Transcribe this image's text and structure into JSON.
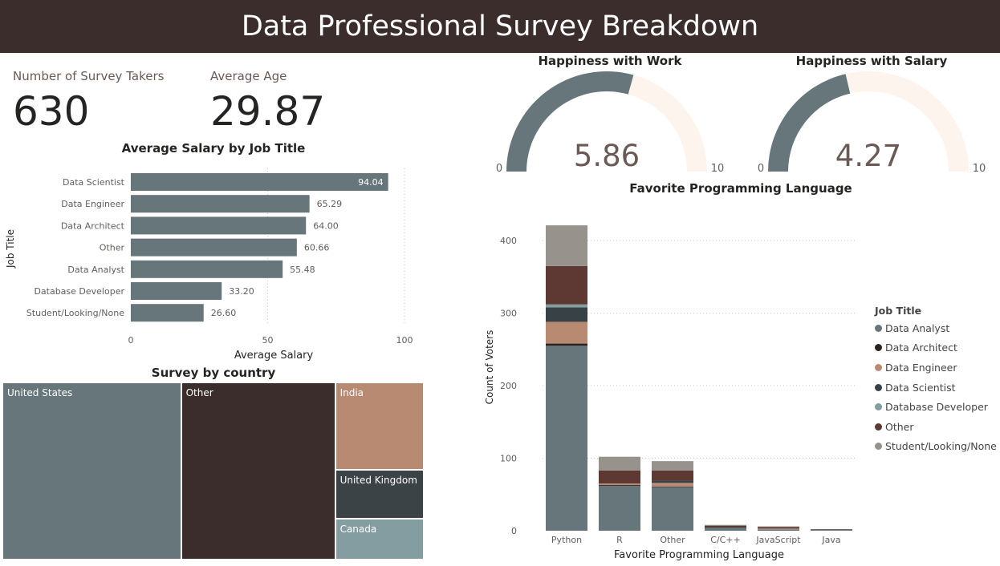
{
  "header": {
    "title": "Data Professional Survey Breakdown"
  },
  "kpis": [
    {
      "label": "Number of Survey Takers",
      "value": "630"
    },
    {
      "label": "Average Age",
      "value": "29.87"
    }
  ],
  "colors": {
    "header_bg": "#3a2d2b",
    "data_analyst": "#67767a",
    "data_architect": "#2b2321",
    "data_engineer": "#b98a72",
    "data_scientist": "#384246",
    "database_developer": "#849da1",
    "other": "#5e3832",
    "student": "#98928c",
    "gauge_fill": "#67767a",
    "gauge_bg": "#fdf4ee",
    "treemap_us": "#67767a",
    "treemap_other": "#3a2d2b",
    "treemap_india": "#b98a72",
    "treemap_uk": "#3b4346",
    "treemap_canada": "#849da1"
  },
  "chart_data": [
    {
      "id": "salary",
      "type": "bar",
      "orientation": "horizontal",
      "title": "Average Salary by Job Title",
      "xlabel": "Average Salary",
      "ylabel": "Job Title",
      "categories": [
        "Data Scientist",
        "Data Engineer",
        "Data Architect",
        "Other",
        "Data Analyst",
        "Database Developer",
        "Student/Looking/None"
      ],
      "values": [
        94.04,
        65.29,
        64.0,
        60.66,
        55.48,
        33.2,
        26.6
      ],
      "value_labels": [
        "94.04",
        "65.29",
        "64.00",
        "60.66",
        "55.48",
        "33.20",
        "26.60"
      ],
      "xlim": [
        0,
        100
      ],
      "xticks": [
        "0",
        "50",
        "100"
      ],
      "grid": true
    },
    {
      "id": "happiness-work",
      "type": "gauge",
      "title": "Happiness with Work",
      "value": 5.86,
      "value_label": "5.86",
      "min": 0,
      "max": 10,
      "min_label": "0",
      "max_label": "10"
    },
    {
      "id": "happiness-salary",
      "type": "gauge",
      "title": "Happiness with Salary",
      "value": 4.27,
      "value_label": "4.27",
      "min": 0,
      "max": 10,
      "min_label": "0",
      "max_label": "10"
    },
    {
      "id": "country",
      "type": "treemap",
      "title": "Survey by country",
      "categories": [
        "United States",
        "Other",
        "India",
        "United Kingdom",
        "Canada"
      ],
      "values": [
        262,
        226,
        64,
        36,
        30
      ]
    },
    {
      "id": "language",
      "type": "bar",
      "stacked": true,
      "title": "Favorite Programming Language",
      "xlabel": "Favorite Programming Language",
      "ylabel": "Count of Voters",
      "categories": [
        "Python",
        "R",
        "Other",
        "C/C++",
        "JavaScript",
        "Java"
      ],
      "ylim": [
        0,
        420
      ],
      "yticks": [
        "0",
        "100",
        "200",
        "300",
        "400"
      ],
      "legend_title": "Job Title",
      "legend_position": "right",
      "series": [
        {
          "name": "Data Analyst",
          "values": [
            255,
            62,
            60,
            4,
            2,
            1
          ]
        },
        {
          "name": "Data Architect",
          "values": [
            3,
            1,
            1,
            0,
            0,
            0
          ]
        },
        {
          "name": "Data Engineer",
          "values": [
            30,
            2,
            5,
            0,
            1,
            0
          ]
        },
        {
          "name": "Data Scientist",
          "values": [
            20,
            0,
            3,
            1,
            0,
            0
          ]
        },
        {
          "name": "Database Developer",
          "values": [
            4,
            0,
            0,
            0,
            0,
            0
          ]
        },
        {
          "name": "Other",
          "values": [
            53,
            18,
            14,
            2,
            2,
            1
          ]
        },
        {
          "name": "Student/Looking/None",
          "values": [
            56,
            19,
            13,
            1,
            1,
            0
          ]
        }
      ]
    }
  ]
}
